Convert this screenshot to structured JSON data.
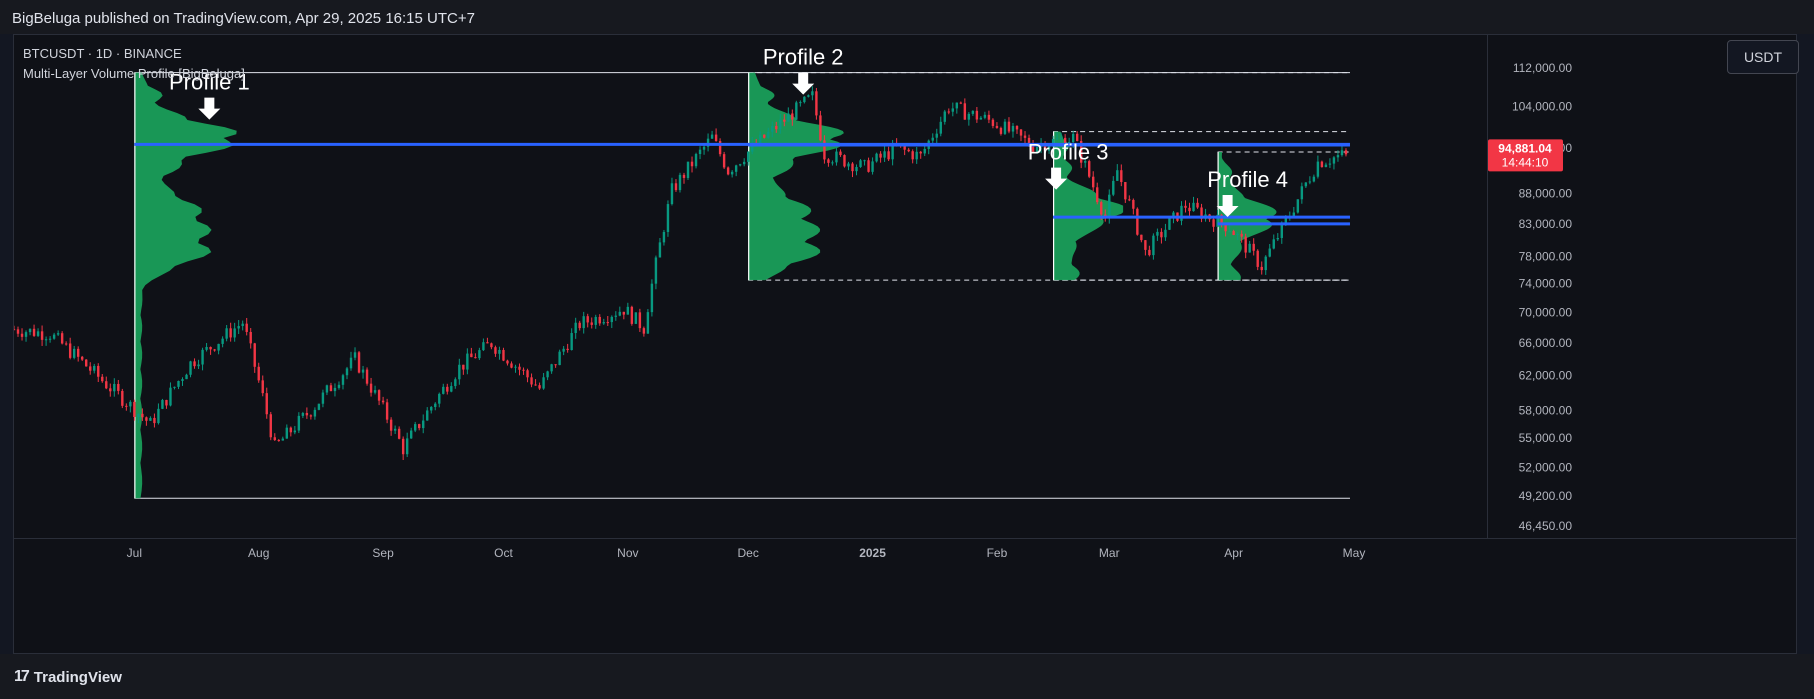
{
  "header": {
    "publisher_text": "BigBeluga published on TradingView.com, Apr 29, 2025 16:15 UTC+7"
  },
  "chart": {
    "symbol_line": "BTCUSDT · 1D · BINANCE",
    "indicator_line": "Multi-Layer Volume Profile [BigBeluga]",
    "currency_label": "USDT",
    "price_badge": {
      "price": "94,881.04",
      "countdown": "14:44:10"
    }
  },
  "footer": {
    "brand": "TradingView",
    "logo_icon": "tradingview-logo-icon"
  },
  "colors": {
    "up": "#089981",
    "down": "#f23645",
    "profile_fill": "#1aa35c",
    "poc_line": "#2962ff",
    "badge": "#f23645"
  },
  "chart_data": {
    "type": "candlestick",
    "symbol": "BTCUSDT",
    "timeframe": "1D",
    "y_axis": {
      "ticks": [
        112000,
        104000,
        96000,
        88000,
        83000,
        78000,
        74000,
        70000,
        66000,
        62000,
        58000,
        55000,
        52000,
        49200,
        46450
      ],
      "tick_labels": [
        "112,000.00",
        "104,000.00",
        "96,000.00",
        "88,000.00",
        "83,000.00",
        "78,000.00",
        "74,000.00",
        "70,000.00",
        "66,000.00",
        "62,000.00",
        "58,000.00",
        "55,000.00",
        "52,000.00",
        "49,200.00",
        "46,450.00"
      ],
      "scale": "log",
      "ylim": [
        46450,
        112000
      ]
    },
    "x_axis": {
      "start_date": "2024-06-01",
      "end_date": "2025-05-01",
      "ticks": [
        "2024-07-01",
        "2024-08-01",
        "2024-09-01",
        "2024-10-01",
        "2024-11-01",
        "2024-12-01",
        "2025-01-01",
        "2025-02-01",
        "2025-03-01",
        "2025-04-01",
        "2025-05-01"
      ],
      "tick_labels": [
        "Jul",
        "Aug",
        "Sep",
        "Oct",
        "Nov",
        "Dec",
        "2025",
        "Feb",
        "Mar",
        "Apr",
        "May"
      ]
    },
    "last_price": 94881.04,
    "keyframes": [
      [
        "2024-06-01",
        67800
      ],
      [
        "2024-06-10",
        67200
      ],
      [
        "2024-06-24",
        61000
      ],
      [
        "2024-07-05",
        56500
      ],
      [
        "2024-07-15",
        63500
      ],
      [
        "2024-07-28",
        68700
      ],
      [
        "2024-08-05",
        54000
      ],
      [
        "2024-08-15",
        58500
      ],
      [
        "2024-08-25",
        64000
      ],
      [
        "2024-09-06",
        53900
      ],
      [
        "2024-09-20",
        63000
      ],
      [
        "2024-09-28",
        66000
      ],
      [
        "2024-10-10",
        60500
      ],
      [
        "2024-10-20",
        68500
      ],
      [
        "2024-10-31",
        70500
      ],
      [
        "2024-11-05",
        68000
      ],
      [
        "2024-11-12",
        88500
      ],
      [
        "2024-11-22",
        98000
      ],
      [
        "2024-11-26",
        92000
      ],
      [
        "2024-12-05",
        98000
      ],
      [
        "2024-12-17",
        106000
      ],
      [
        "2024-12-20",
        95000
      ],
      [
        "2024-12-30",
        92500
      ],
      [
        "2025-01-07",
        96000
      ],
      [
        "2025-01-13",
        94500
      ],
      [
        "2025-01-20",
        104000
      ],
      [
        "2025-01-31",
        101000
      ],
      [
        "2025-02-10",
        96500
      ],
      [
        "2025-02-20",
        98000
      ],
      [
        "2025-02-28",
        84000
      ],
      [
        "2025-03-03",
        92000
      ],
      [
        "2025-03-10",
        78500
      ],
      [
        "2025-03-20",
        86000
      ],
      [
        "2025-03-31",
        82500
      ],
      [
        "2025-04-08",
        76500
      ],
      [
        "2025-04-15",
        84500
      ],
      [
        "2025-04-22",
        93500
      ],
      [
        "2025-04-29",
        94881
      ]
    ],
    "volume_profiles": [
      {
        "label": "Profile 1",
        "start": "2024-07-01",
        "end": "2025-04-30",
        "price_low": 49000,
        "price_high": 111000,
        "poc": 96700,
        "box_style": "solid"
      },
      {
        "label": "Profile 2",
        "start": "2024-12-01",
        "end": "2025-04-30",
        "price_low": 74500,
        "price_high": 111000,
        "poc": 96600,
        "box_style": "dashed"
      },
      {
        "label": "Profile 3",
        "start": "2025-02-15",
        "end": "2025-04-30",
        "price_low": 74500,
        "price_high": 99100,
        "poc": 84100,
        "box_style": "dashed"
      },
      {
        "label": "Profile 4",
        "start": "2025-03-28",
        "end": "2025-04-30",
        "price_low": 74500,
        "price_high": 95300,
        "poc": 83000,
        "box_style": "dashed"
      }
    ]
  }
}
